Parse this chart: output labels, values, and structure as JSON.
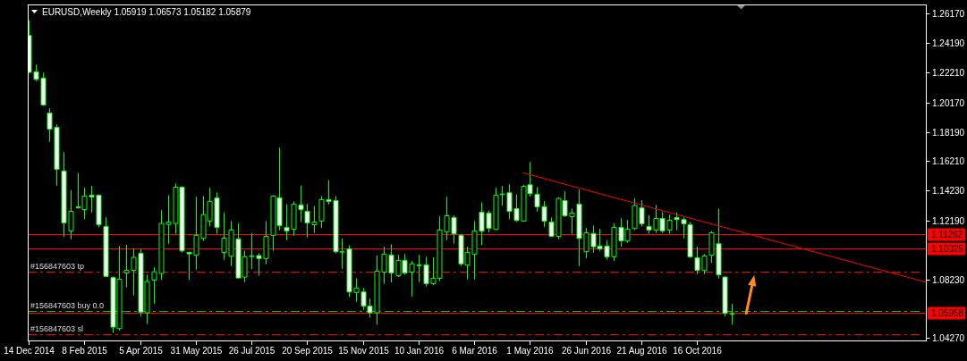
{
  "chart_data": {
    "type": "candlestick",
    "title": "EURUSD,Weekly 1.05919 1.06573 1.05182 1.05879",
    "x": [
      "2014-12-14",
      "2014-12-21",
      "2014-12-28",
      "2015-01-04",
      "2015-01-11",
      "2015-01-18",
      "2015-01-25",
      "2015-02-01",
      "2015-02-08",
      "2015-02-15",
      "2015-02-22",
      "2015-03-01",
      "2015-03-08",
      "2015-03-15",
      "2015-03-22",
      "2015-03-29",
      "2015-04-05",
      "2015-04-12",
      "2015-04-19",
      "2015-04-26",
      "2015-05-03",
      "2015-05-10",
      "2015-05-17",
      "2015-05-24",
      "2015-05-31",
      "2015-06-07",
      "2015-06-14",
      "2015-06-21",
      "2015-06-28",
      "2015-07-05",
      "2015-07-12",
      "2015-07-19",
      "2015-07-26",
      "2015-08-02",
      "2015-08-09",
      "2015-08-16",
      "2015-08-23",
      "2015-08-30",
      "2015-09-06",
      "2015-09-13",
      "2015-09-20",
      "2015-09-27",
      "2015-10-04",
      "2015-10-11",
      "2015-10-18",
      "2015-10-25",
      "2015-11-01",
      "2015-11-08",
      "2015-11-15",
      "2015-11-22",
      "2015-11-29",
      "2015-12-06",
      "2015-12-13",
      "2015-12-20",
      "2015-12-27",
      "2016-01-03",
      "2016-01-10",
      "2016-01-17",
      "2016-01-24",
      "2016-01-31",
      "2016-02-07",
      "2016-02-14",
      "2016-02-21",
      "2016-02-28",
      "2016-03-06",
      "2016-03-13",
      "2016-03-20",
      "2016-03-27",
      "2016-04-03",
      "2016-04-10",
      "2016-04-17",
      "2016-04-24",
      "2016-05-01",
      "2016-05-08",
      "2016-05-15",
      "2016-05-22",
      "2016-05-29",
      "2016-06-05",
      "2016-06-12",
      "2016-06-19",
      "2016-06-26",
      "2016-07-03",
      "2016-07-10",
      "2016-07-17",
      "2016-07-24",
      "2016-07-31",
      "2016-08-07",
      "2016-08-14",
      "2016-08-21",
      "2016-08-28",
      "2016-09-04",
      "2016-09-11",
      "2016-09-18",
      "2016-09-25",
      "2016-10-02",
      "2016-10-09",
      "2016-10-16",
      "2016-10-23",
      "2016-10-30",
      "2016-11-06",
      "2016-11-13",
      "2016-11-20"
    ],
    "ohlc": [
      [
        1.2471,
        1.2572,
        1.2216,
        1.2222
      ],
      [
        1.2226,
        1.2274,
        1.2162,
        1.2174
      ],
      [
        1.2182,
        1.222,
        1.1995,
        1.2001
      ],
      [
        1.1947,
        1.1979,
        1.1752,
        1.1838
      ],
      [
        1.185,
        1.187,
        1.1456,
        1.1567
      ],
      [
        1.1555,
        1.1683,
        1.111,
        1.1205
      ],
      [
        1.1151,
        1.1426,
        1.1094,
        1.1283
      ],
      [
        1.1307,
        1.1541,
        1.1301,
        1.1313
      ],
      [
        1.1295,
        1.1442,
        1.1231,
        1.1386
      ],
      [
        1.1392,
        1.1454,
        1.1275,
        1.138
      ],
      [
        1.1392,
        1.1398,
        1.1175,
        1.1193
      ],
      [
        1.1181,
        1.1243,
        1.0839,
        1.0843
      ],
      [
        1.0837,
        1.0843,
        1.0461,
        1.0501
      ],
      [
        1.0491,
        1.1048,
        1.0477,
        1.0825
      ],
      [
        1.0867,
        1.1056,
        1.0769,
        1.0885
      ],
      [
        1.0885,
        1.1034,
        1.0714,
        1.0972
      ],
      [
        1.1,
        1.1032,
        1.0572,
        1.0602
      ],
      [
        1.0598,
        1.0855,
        1.0522,
        1.0809
      ],
      [
        1.0819,
        1.0905,
        1.0658,
        1.0875
      ],
      [
        1.0863,
        1.1291,
        1.0819,
        1.1201
      ],
      [
        1.1195,
        1.1392,
        1.1064,
        1.1211
      ],
      [
        1.1201,
        1.1472,
        1.1131,
        1.1446
      ],
      [
        1.1446,
        1.1452,
        1.1004,
        1.1016
      ],
      [
        1.1006,
        1.101,
        1.0819,
        1.0996
      ],
      [
        1.0986,
        1.1382,
        1.0889,
        1.1121
      ],
      [
        1.11,
        1.1386,
        1.1084,
        1.1261
      ],
      [
        1.1217,
        1.1442,
        1.1181,
        1.135
      ],
      [
        1.1374,
        1.141,
        1.1131,
        1.1175
      ],
      [
        1.1006,
        1.1277,
        1.0956,
        1.1102
      ],
      [
        1.098,
        1.1217,
        1.0913,
        1.1157
      ],
      [
        1.1096,
        1.1201,
        1.0829,
        1.0833
      ],
      [
        1.0839,
        1.1018,
        1.0805,
        1.0976
      ],
      [
        1.0978,
        1.1135,
        1.0893,
        1.0982
      ],
      [
        1.0984,
        1.1,
        1.0849,
        1.0964
      ],
      [
        1.0964,
        1.1217,
        1.0926,
        1.1114
      ],
      [
        1.1121,
        1.1392,
        1.1016,
        1.1386
      ],
      [
        1.1374,
        1.1713,
        1.1155,
        1.1187
      ],
      [
        1.1175,
        1.1332,
        1.1088,
        1.1151
      ],
      [
        1.1163,
        1.135,
        1.1118,
        1.1332
      ],
      [
        1.1326,
        1.1458,
        1.1211,
        1.1295
      ],
      [
        1.1283,
        1.1332,
        1.1106,
        1.1205
      ],
      [
        1.1193,
        1.1319,
        1.1137,
        1.1211
      ],
      [
        1.1217,
        1.1386,
        1.1171,
        1.1362
      ],
      [
        1.1362,
        1.1494,
        1.133,
        1.135
      ],
      [
        1.1356,
        1.1386,
        1.1,
        1.101
      ],
      [
        1.1008,
        1.1098,
        1.0895,
        1.101
      ],
      [
        1.103,
        1.1054,
        1.0704,
        1.0739
      ],
      [
        1.0735,
        1.0831,
        1.0672,
        1.0765
      ],
      [
        1.0739,
        1.0765,
        1.0618,
        1.0644
      ],
      [
        1.0644,
        1.0694,
        1.0566,
        1.0598
      ],
      [
        1.0598,
        1.0984,
        1.0518,
        1.0879
      ],
      [
        1.0873,
        1.1044,
        1.0793,
        1.0994
      ],
      [
        1.0988,
        1.106,
        1.0803,
        1.0867
      ],
      [
        1.0849,
        1.099,
        1.0839,
        1.0952
      ],
      [
        1.0952,
        1.0996,
        1.0855,
        1.0867
      ],
      [
        1.0873,
        1.0948,
        1.0708,
        1.0928
      ],
      [
        1.0922,
        1.099,
        1.0805,
        1.0917
      ],
      [
        1.0922,
        1.0976,
        1.0775,
        1.0795
      ],
      [
        1.0795,
        1.0972,
        1.0785,
        1.0831
      ],
      [
        1.0831,
        1.1249,
        1.0811,
        1.1157
      ],
      [
        1.1143,
        1.1382,
        1.1088,
        1.1253
      ],
      [
        1.1241,
        1.1255,
        1.1064,
        1.1131
      ],
      [
        1.1121,
        1.1131,
        1.0913,
        1.0928
      ],
      [
        1.092,
        1.1044,
        1.0823,
        1.1006
      ],
      [
        1.0994,
        1.1217,
        1.0823,
        1.1151
      ],
      [
        1.1277,
        1.1344,
        1.1056,
        1.1149
      ],
      [
        1.1271,
        1.1289,
        1.1141,
        1.1169
      ],
      [
        1.1161,
        1.1442,
        1.1157,
        1.1392
      ],
      [
        1.1396,
        1.1454,
        1.1322,
        1.14
      ],
      [
        1.1408,
        1.1466,
        1.1231,
        1.1283
      ],
      [
        1.1301,
        1.1398,
        1.1211,
        1.1221
      ],
      [
        1.1217,
        1.1462,
        1.1217,
        1.1452
      ],
      [
        1.1462,
        1.1617,
        1.1382,
        1.1402
      ],
      [
        1.1398,
        1.1446,
        1.1281,
        1.1313
      ],
      [
        1.1315,
        1.1352,
        1.1177,
        1.1217
      ],
      [
        1.1211,
        1.1241,
        1.111,
        1.1114
      ],
      [
        1.1114,
        1.1378,
        1.1094,
        1.137
      ],
      [
        1.1356,
        1.1418,
        1.1245,
        1.1253
      ],
      [
        1.1247,
        1.1301,
        1.1131,
        1.1271
      ],
      [
        1.1332,
        1.143,
        1.0913,
        1.11
      ],
      [
        1.101,
        1.1171,
        1.0966,
        1.1139
      ],
      [
        1.1133,
        1.1187,
        1.1004,
        1.1044
      ],
      [
        1.1048,
        1.1165,
        1.1016,
        1.103
      ],
      [
        1.1048,
        1.1088,
        1.0956,
        1.0976
      ],
      [
        1.0976,
        1.1201,
        1.0948,
        1.1175
      ],
      [
        1.1175,
        1.1237,
        1.1044,
        1.1084
      ],
      [
        1.1082,
        1.1225,
        1.107,
        1.1163
      ],
      [
        1.1167,
        1.1372,
        1.1155,
        1.1322
      ],
      [
        1.1307,
        1.1358,
        1.1181,
        1.1199
      ],
      [
        1.1181,
        1.1257,
        1.1131,
        1.1157
      ],
      [
        1.1157,
        1.1326,
        1.1137,
        1.1235
      ],
      [
        1.1235,
        1.1281,
        1.1137,
        1.1151
      ],
      [
        1.1157,
        1.1261,
        1.1131,
        1.1223
      ],
      [
        1.1241,
        1.1277,
        1.1155,
        1.1227
      ],
      [
        1.1227,
        1.1241,
        1.11,
        1.1199
      ],
      [
        1.1193,
        1.1211,
        1.0968,
        1.0976
      ],
      [
        1.097,
        1.1044,
        1.0859,
        1.0885
      ],
      [
        1.0883,
        1.0994,
        1.0859,
        1.0982
      ],
      [
        1.0986,
        1.1149,
        1.0936,
        1.1139
      ],
      [
        1.1064,
        1.1301,
        1.0829,
        1.0855
      ],
      [
        1.0839,
        1.0843,
        1.0574,
        1.0594
      ],
      [
        1.05919,
        1.06573,
        1.05182,
        1.05879
      ]
    ],
    "color": "#00ff00",
    "colors": [
      "#ffffff",
      "#ffffff",
      "#ffffff",
      "#ffffff",
      "#ffffff",
      "#ffffff",
      "#000000",
      "#000000",
      "#000000",
      "#ffffff",
      "#ffffff",
      "#ffffff",
      "#ffffff",
      "#000000",
      "#000000",
      "#000000",
      "#ffffff",
      "#000000",
      "#000000",
      "#000000",
      "#000000",
      "#000000",
      "#ffffff",
      "#ffffff",
      "#000000",
      "#000000",
      "#000000",
      "#ffffff",
      "#000000",
      "#000000",
      "#ffffff",
      "#000000",
      "#000000",
      "#ffffff",
      "#000000",
      "#000000",
      "#ffffff",
      "#ffffff",
      "#000000",
      "#ffffff",
      "#ffffff",
      "#000000",
      "#000000",
      "#ffffff",
      "#ffffff",
      "#000000",
      "#ffffff",
      "#000000",
      "#ffffff",
      "#ffffff",
      "#000000",
      "#000000",
      "#ffffff",
      "#000000",
      "#ffffff",
      "#000000",
      "#ffffff",
      "#ffffff",
      "#000000",
      "#000000",
      "#000000",
      "#ffffff",
      "#ffffff",
      "#000000",
      "#000000",
      "#ffffff",
      "#ffffff",
      "#000000",
      "#000000",
      "#ffffff",
      "#ffffff",
      "#000000",
      "#ffffff",
      "#ffffff",
      "#ffffff",
      "#ffffff",
      "#000000",
      "#ffffff",
      "#000000",
      "#ffffff",
      "#000000",
      "#ffffff",
      "#ffffff",
      "#ffffff",
      "#000000",
      "#ffffff",
      "#000000",
      "#000000",
      "#ffffff",
      "#ffffff",
      "#000000",
      "#ffffff",
      "#000000",
      "#ffffff",
      "#ffffff",
      "#ffffff",
      "#ffffff",
      "#000000",
      "#000000",
      "#ffffff",
      "#ffffff",
      "#ffffff"
    ],
    "series": [
      {
        "type": "line",
        "x": [
          "2016-04-24",
          "2017-06-03"
        ],
        "values": [
          1.1543,
          1.0805
        ],
        "color": "#ff0000"
      }
    ],
    "xlim": [
      "2014-12-13",
      "2017-06-03"
    ],
    "xticks": [
      {
        "value": "2014-12-14",
        "label": "14 Dec 2014"
      },
      {
        "value": "2015-02-08",
        "label": "8 Feb 2015"
      },
      {
        "value": "2015-04-05",
        "label": "5 Apr 2015"
      },
      {
        "value": "2015-05-31",
        "label": "31 May 2015"
      },
      {
        "value": "2015-07-26",
        "label": "26 Jul 2015"
      },
      {
        "value": "2015-09-20",
        "label": "20 Sep 2015"
      },
      {
        "value": "2015-11-15",
        "label": "15 Nov 2015"
      },
      {
        "value": "2016-01-10",
        "label": "10 Jan 2016"
      },
      {
        "value": "2016-03-06",
        "label": "6 Mar 2016"
      },
      {
        "value": "2016-05-01",
        "label": "1 May 2016"
      },
      {
        "value": "2016-06-26",
        "label": "26 Jun 2016"
      },
      {
        "value": "2016-08-21",
        "label": "21 Aug 2016"
      },
      {
        "value": "2016-10-16",
        "label": "16 Oct 2016"
      }
    ],
    "ylim": [
      1.0411,
      1.268
    ],
    "yticks": [
      {
        "value": 1.2617,
        "label": "1.26170"
      },
      {
        "value": 1.2419,
        "label": "1.24190"
      },
      {
        "value": 1.2221,
        "label": "1.22210"
      },
      {
        "value": 1.2017,
        "label": "1.20170"
      },
      {
        "value": 1.1819,
        "label": "1.18190"
      },
      {
        "value": 1.1621,
        "label": "1.16210"
      },
      {
        "value": 1.1423,
        "label": "1.14230"
      },
      {
        "value": 1.1219,
        "label": "1.12190"
      },
      {
        "value": 1.0823,
        "label": "1.08230"
      },
      {
        "value": 1.0427,
        "label": "1.04270"
      }
    ],
    "ref_lines": [
      {
        "axis": "y",
        "value": 1.11262,
        "label": "1.11262",
        "color": "#ff0000",
        "line_style": "solid"
      },
      {
        "axis": "y",
        "value": 1.10325,
        "label": "1.10325",
        "color": "#ff0000",
        "line_style": "solid"
      },
      {
        "axis": "y",
        "value": 1.0873,
        "label": "#156847603 tp",
        "color": "#ff0000",
        "line_style": "dashed"
      },
      {
        "axis": "y",
        "value": 1.0608,
        "label": "#156847603 buy 0.0",
        "color": "#00c800",
        "line_style": "dashed"
      },
      {
        "axis": "y",
        "value": 1.05958,
        "label": "1.05958",
        "color": "#ff0000",
        "line_style": "solid"
      },
      {
        "axis": "y",
        "value": 1.0451,
        "label": "#156847603 sl",
        "color": "#ff0000",
        "line_style": "dashed"
      }
    ]
  }
}
